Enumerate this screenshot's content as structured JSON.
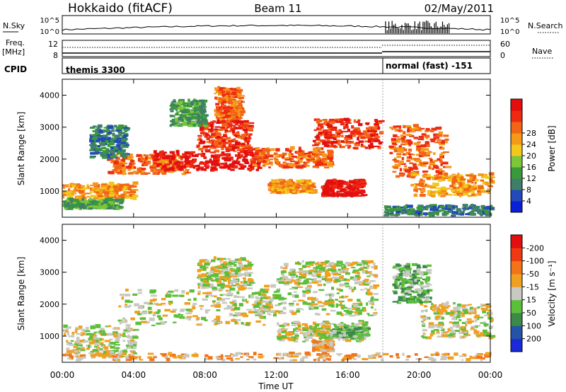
{
  "header": {
    "station": "Hokkaido (fitACF)",
    "beam": "Beam 11",
    "date": "02/May/2011"
  },
  "strip": {
    "nsky_label": "N.Sky",
    "nsky_ticks": [
      "10^5",
      "10^0"
    ],
    "nsearch_label": "N.Search",
    "nsearch_ticks": [
      "10^5",
      "10^0"
    ],
    "freq_label_1": "Freq.",
    "freq_label_2": "[MHz]",
    "freq_ticks": [
      "12",
      "8"
    ],
    "nave_label": "Nave",
    "nave_ticks": [
      "60",
      "0"
    ],
    "cpid_label": "CPID",
    "cpid_segments": [
      {
        "text": "themis 3300",
        "start_h": 0
      },
      {
        "text": "normal (fast) -151",
        "start_h": 18
      }
    ]
  },
  "chart_data": [
    {
      "type": "heatmap",
      "title": "",
      "xlabel": "Time UT",
      "ylabel": "Slant Range [km]",
      "x_ticks": [
        "00:00",
        "04:00",
        "08:00",
        "12:00",
        "16:00",
        "20:00",
        "00:00"
      ],
      "x_range_hours": [
        0,
        24
      ],
      "y_ticks": [
        1000,
        2000,
        3000,
        4000
      ],
      "y_range_km": [
        180,
        4500
      ],
      "colorbar": {
        "label": "Power [dB]",
        "ticks": [
          "4",
          "8",
          "12",
          "16",
          "20",
          "24",
          "28"
        ],
        "colors": [
          "#0a1fd8",
          "#2449b8",
          "#3f7f6a",
          "#3a9a3a",
          "#7cc63a",
          "#f2c81c",
          "#f59a18",
          "#f26416",
          "#ee2a12",
          "#e30e0e"
        ]
      },
      "regions": [
        {
          "t0": 0.0,
          "t1": 4.0,
          "r0": 700,
          "r1": 1200,
          "level": 6
        },
        {
          "t0": 0.0,
          "t1": 3.2,
          "r0": 400,
          "r1": 700,
          "level": 3
        },
        {
          "t0": 2.5,
          "t1": 7.0,
          "r0": 1500,
          "r1": 2100,
          "level": 7
        },
        {
          "t0": 5.0,
          "t1": 11.0,
          "r0": 1600,
          "r1": 2200,
          "level": 9
        },
        {
          "t0": 7.5,
          "t1": 10.5,
          "r0": 2200,
          "r1": 3200,
          "level": 8
        },
        {
          "t0": 8.5,
          "t1": 10.0,
          "r0": 3200,
          "r1": 4200,
          "level": 7
        },
        {
          "t0": 10.5,
          "t1": 15.0,
          "r0": 1700,
          "r1": 2300,
          "level": 7
        },
        {
          "t0": 14.0,
          "t1": 17.8,
          "r0": 2300,
          "r1": 3200,
          "level": 8
        },
        {
          "t0": 14.5,
          "t1": 16.8,
          "r0": 800,
          "r1": 1300,
          "level": 9
        },
        {
          "t0": 11.5,
          "t1": 14.0,
          "r0": 900,
          "r1": 1300,
          "level": 6
        },
        {
          "t0": 18.3,
          "t1": 21.5,
          "r0": 1400,
          "r1": 3000,
          "level": 7
        },
        {
          "t0": 19.5,
          "t1": 24.0,
          "r0": 800,
          "r1": 1500,
          "level": 6
        },
        {
          "t0": 18.0,
          "t1": 24.0,
          "r0": 200,
          "r1": 500,
          "level": 2
        },
        {
          "t0": 1.5,
          "t1": 3.5,
          "r0": 2000,
          "r1": 3000,
          "level": 2
        },
        {
          "t0": 6.0,
          "t1": 8.0,
          "r0": 3000,
          "r1": 3800,
          "level": 3
        }
      ]
    },
    {
      "type": "heatmap",
      "title": "",
      "xlabel": "Time UT",
      "ylabel": "Slant Range [km]",
      "x_ticks": [
        "00:00",
        "04:00",
        "08:00",
        "12:00",
        "16:00",
        "20:00",
        "00:00"
      ],
      "x_range_hours": [
        0,
        24
      ],
      "y_ticks": [
        1000,
        2000,
        3000,
        4000
      ],
      "y_range_km": [
        180,
        4500
      ],
      "colorbar": {
        "label": "Velocity [m s⁻¹]",
        "ticks": [
          "200",
          "100",
          "50",
          "15",
          "-15",
          "-50",
          "-100",
          "-200"
        ],
        "colors": [
          "#1a2ad8",
          "#2454a8",
          "#3b8a4a",
          "#5cbf3a",
          "#c9c9c3",
          "#f0a020",
          "#f27418",
          "#ee3a12",
          "#e30e0e"
        ]
      },
      "regions": [
        {
          "t0": 0.0,
          "t1": 4.0,
          "r0": 300,
          "r1": 1300,
          "level": 4
        },
        {
          "t0": 3.0,
          "t1": 11.5,
          "r0": 1300,
          "r1": 2400,
          "level": 4
        },
        {
          "t0": 7.5,
          "t1": 10.5,
          "r0": 2400,
          "r1": 3400,
          "level": 4
        },
        {
          "t0": 10.5,
          "t1": 17.5,
          "r0": 1600,
          "r1": 2600,
          "level": 4
        },
        {
          "t0": 12.0,
          "t1": 17.5,
          "r0": 2600,
          "r1": 3300,
          "level": 4
        },
        {
          "t0": 12.0,
          "t1": 17.0,
          "r0": 800,
          "r1": 1400,
          "level": 4
        },
        {
          "t0": 15.0,
          "t1": 17.0,
          "r0": 900,
          "r1": 1200,
          "level": 3
        },
        {
          "t0": 14.0,
          "t1": 15.0,
          "r0": 500,
          "r1": 800,
          "level": 5
        },
        {
          "t0": 18.5,
          "t1": 20.5,
          "r0": 2000,
          "r1": 3200,
          "level": 3
        },
        {
          "t0": 20.0,
          "t1": 24.0,
          "r0": 900,
          "r1": 2000,
          "level": 4
        },
        {
          "t0": 0.0,
          "t1": 24.0,
          "r0": 200,
          "r1": 420,
          "level": 5
        }
      ]
    }
  ]
}
